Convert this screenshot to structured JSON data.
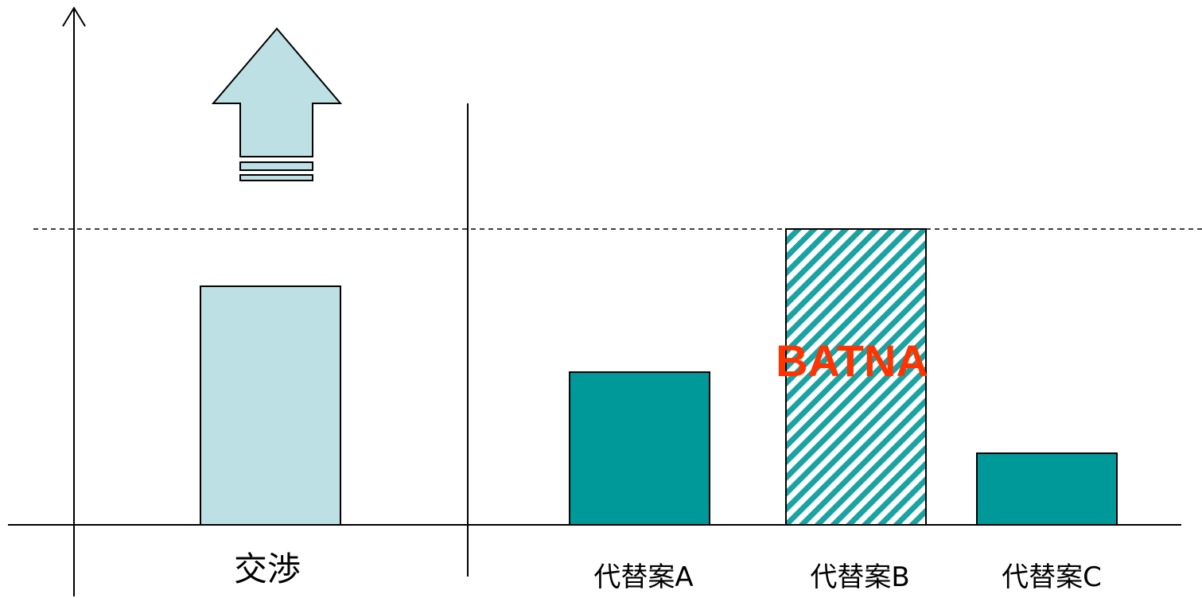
{
  "colors": {
    "negotiation_fill": "#bce0e3",
    "alternative_fill": "#009999",
    "hatch_color": "#1aa3a3",
    "batna_text": "#ff3300",
    "stroke": "#000000"
  },
  "chart_data": {
    "type": "bar",
    "categories": [
      "交渉",
      "代替案A",
      "代替案B",
      "代替案C"
    ],
    "values": [
      5,
      3.2,
      6.2,
      1.5
    ],
    "ylim": [
      0,
      10
    ],
    "reference_line": 6.2,
    "highlight_index": 2,
    "annotation": "BATNA",
    "grid": false
  }
}
